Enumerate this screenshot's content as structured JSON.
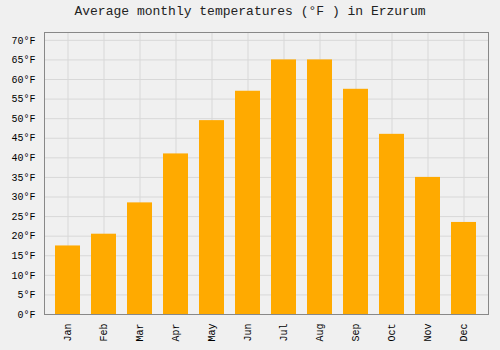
{
  "chart_data": {
    "type": "bar",
    "title": "Average monthly temperatures (°F ) in Erzurum",
    "categories": [
      "Jan",
      "Feb",
      "Mar",
      "Apr",
      "May",
      "Jun",
      "Jul",
      "Aug",
      "Sep",
      "Oct",
      "Nov",
      "Dec"
    ],
    "values": [
      17.5,
      20.5,
      28.5,
      41.0,
      49.5,
      57.0,
      65.0,
      65.0,
      57.5,
      46.0,
      35.0,
      23.5
    ],
    "color": "#FFAA00",
    "ylim": [
      0,
      72
    ],
    "yticks": [
      {
        "value": 0,
        "label": "0°F"
      },
      {
        "value": 5,
        "label": "5°F"
      },
      {
        "value": 10,
        "label": "10°F"
      },
      {
        "value": 15,
        "label": "15°F"
      },
      {
        "value": 20,
        "label": "20°F"
      },
      {
        "value": 25,
        "label": "25°F"
      },
      {
        "value": 30,
        "label": "30°F"
      },
      {
        "value": 35,
        "label": "35°F"
      },
      {
        "value": 40,
        "label": "40°F"
      },
      {
        "value": 45,
        "label": "45°F"
      },
      {
        "value": 50,
        "label": "50°F"
      },
      {
        "value": 55,
        "label": "55°F"
      },
      {
        "value": 60,
        "label": "60°F"
      },
      {
        "value": 65,
        "label": "65°F"
      },
      {
        "value": 70,
        "label": "70°F"
      }
    ],
    "grid": true
  }
}
